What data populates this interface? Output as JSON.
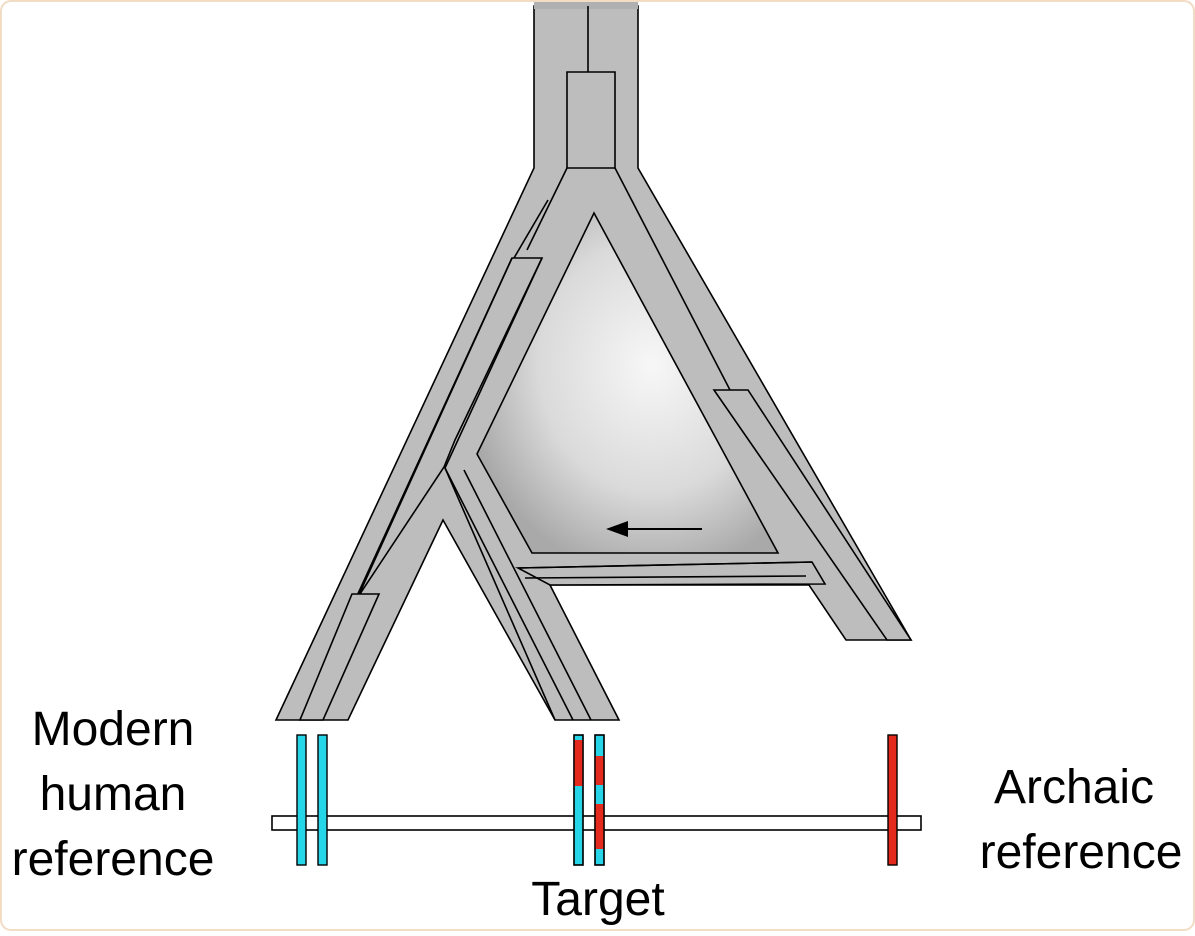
{
  "labels": {
    "modern_line1": "Modern",
    "modern_line2": "human",
    "modern_line3": "reference",
    "archaic_line1": "Archaic",
    "archaic_line2": "reference",
    "target": "Target"
  },
  "colors": {
    "tree_fill": "#bdbdbd",
    "stroke": "#000000",
    "modern_haplotype": "#26d6e8",
    "archaic_haplotype": "#e32a1c",
    "frame": "#f2dcc4"
  }
}
